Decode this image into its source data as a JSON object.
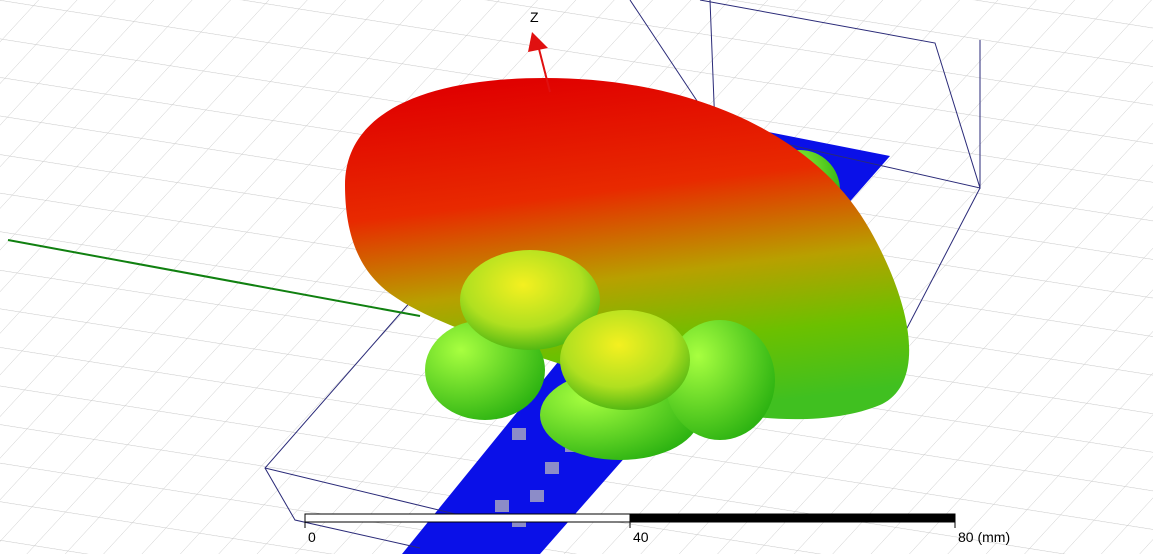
{
  "axis": {
    "z_label": "Z"
  },
  "scale_bar": {
    "ticks": [
      0,
      40,
      {
        "value": 80,
        "label": "80 (mm)"
      }
    ]
  }
}
